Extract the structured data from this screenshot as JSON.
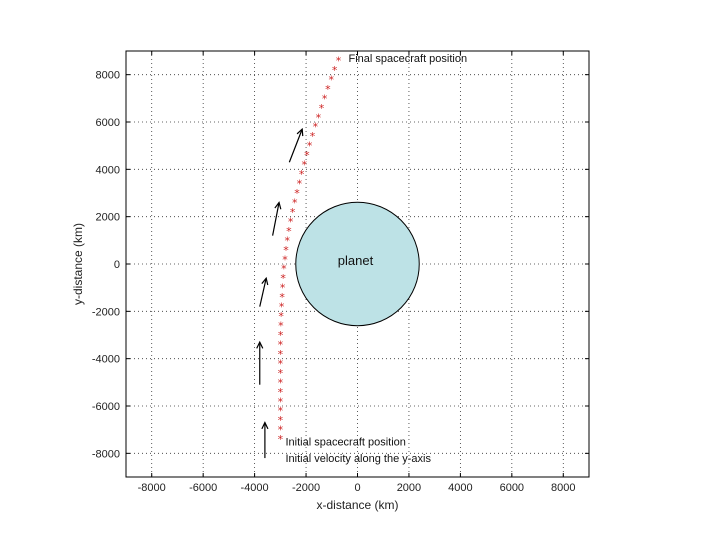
{
  "chart_data": {
    "type": "scatter",
    "xlabel": "x-distance (km)",
    "ylabel": "y-distance (km)",
    "xlim": [
      -9000,
      9000
    ],
    "ylim": [
      -9000,
      9000
    ],
    "xticks": [
      -8000,
      -6000,
      -4000,
      -2000,
      0,
      2000,
      4000,
      6000,
      8000
    ],
    "yticks": [
      -8000,
      -6000,
      -4000,
      -2000,
      0,
      2000,
      4000,
      6000,
      8000
    ],
    "grid": true,
    "planet": {
      "label": "planet",
      "center": [
        0,
        0
      ],
      "radius": 2500,
      "color": "#bde2e6"
    },
    "series": [
      {
        "marker": "*",
        "color": "#cc1f1f",
        "points": [
          [
            -3000,
            -7400
          ],
          [
            -3000,
            -7000
          ],
          [
            -3000,
            -6600
          ],
          [
            -3000,
            -6200
          ],
          [
            -3000,
            -5800
          ],
          [
            -3000,
            -5400
          ],
          [
            -3000,
            -5000
          ],
          [
            -3000,
            -4600
          ],
          [
            -3000,
            -4200
          ],
          [
            -3000,
            -3800
          ],
          [
            -3000,
            -3400
          ],
          [
            -2990,
            -3000
          ],
          [
            -2980,
            -2600
          ],
          [
            -2970,
            -2200
          ],
          [
            -2950,
            -1800
          ],
          [
            -2930,
            -1400
          ],
          [
            -2910,
            -1000
          ],
          [
            -2890,
            -600
          ],
          [
            -2860,
            -200
          ],
          [
            -2820,
            200
          ],
          [
            -2780,
            600
          ],
          [
            -2730,
            1000
          ],
          [
            -2670,
            1400
          ],
          [
            -2600,
            1800
          ],
          [
            -2520,
            2200
          ],
          [
            -2440,
            2600
          ],
          [
            -2350,
            3000
          ],
          [
            -2260,
            3400
          ],
          [
            -2170,
            3800
          ],
          [
            -2070,
            4200
          ],
          [
            -1970,
            4600
          ],
          [
            -1860,
            5000
          ],
          [
            -1750,
            5400
          ],
          [
            -1640,
            5800
          ],
          [
            -1520,
            6200
          ],
          [
            -1400,
            6600
          ],
          [
            -1280,
            7000
          ],
          [
            -1150,
            7400
          ],
          [
            -1020,
            7800
          ],
          [
            -890,
            8200
          ],
          [
            -740,
            8600
          ]
        ]
      }
    ],
    "arrows": [
      {
        "from": [
          -3600,
          -8200
        ],
        "to": [
          -3600,
          -6700
        ]
      },
      {
        "from": [
          -3800,
          -5100
        ],
        "to": [
          -3800,
          -3300
        ]
      },
      {
        "from": [
          -3800,
          -1800
        ],
        "to": [
          -3550,
          -600
        ]
      },
      {
        "from": [
          -3300,
          1200
        ],
        "to": [
          -3050,
          2600
        ]
      },
      {
        "from": [
          -2650,
          4300
        ],
        "to": [
          -2150,
          5700
        ]
      }
    ],
    "annotations": {
      "final": {
        "text": "Final spacecraft position",
        "x": -350,
        "y": 8700
      },
      "initial": {
        "text": "Initial spacecraft position",
        "x": -2800,
        "y": -7500
      },
      "velocity": {
        "text": "Initial velocity along the y-axis",
        "x": -2800,
        "y": -8200
      }
    }
  }
}
